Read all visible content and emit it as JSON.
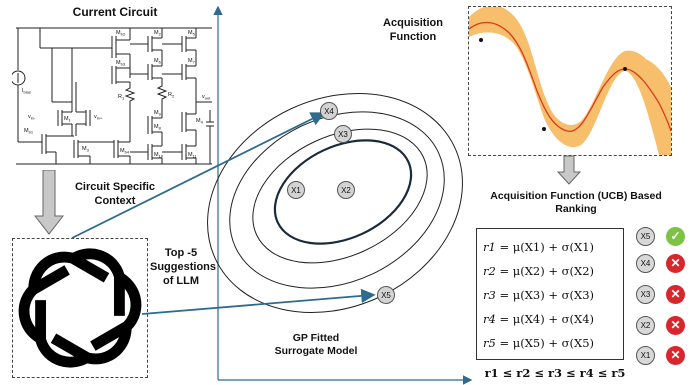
{
  "circuit": {
    "title": "Current Circuit",
    "labels": {
      "ibias": "I",
      "ibias_sub": "bias",
      "vin_minus": "v",
      "vin_minus_sub": "in-",
      "vin_plus": "v",
      "vin_plus_sub": "in+",
      "m1": "M",
      "m1_sub": "1",
      "m2": "M",
      "m2_sub": "2",
      "m3": "M",
      "m3_sub": "3",
      "m4": "M",
      "m4_sub": "4",
      "m5": "M",
      "m5_sub": "5",
      "m6": "M",
      "m6_sub": "6",
      "m7": "M",
      "m7_sub": "7",
      "m8": "M",
      "m8_sub": "8",
      "m9": "M",
      "m9_sub": "9",
      "m10": "M",
      "m10_sub": "10",
      "m11": "M",
      "m11_sub": "11",
      "mb1": "M",
      "mb1_sub": "b1",
      "mb2": "M",
      "mb2_sub": "b2",
      "mb3": "M",
      "mb3_sub": "b3",
      "mb4": "M",
      "mb4_sub": "b4",
      "r1": "R",
      "r1_sub": "1",
      "r2": "R",
      "r2_sub": "2",
      "vout": "v",
      "vout_sub": "out"
    }
  },
  "context_label": "Circuit Specific\nContext",
  "llm_label": "Top -5\nSuggestions\nof LLM",
  "gp_label": "GP Fitted\nSurrogate Model",
  "acq_title": "Acquisition\nFunction",
  "ranking_title": "Acquisition Function (UCB)  Based\nRanking",
  "points": [
    "X4",
    "X3",
    "X1",
    "X2",
    "X5"
  ],
  "equations": [
    {
      "lhs": "r1",
      "rhs": "μ(X1) + σ(X1)"
    },
    {
      "lhs": "r2",
      "rhs": "μ(X2) + σ(X2)"
    },
    {
      "lhs": "r3",
      "rhs": "μ(X3) + σ(X3)"
    },
    {
      "lhs": "r4",
      "rhs": "μ(X4) + σ(X4)"
    },
    {
      "lhs": "r5",
      "rhs": "μ(X5) + σ(X5)"
    }
  ],
  "ranking": [
    {
      "label": "X5",
      "status": "✓",
      "selected": true
    },
    {
      "label": "X4",
      "status": "✕",
      "selected": false
    },
    {
      "label": "X3",
      "status": "✕",
      "selected": false
    },
    {
      "label": "X2",
      "status": "✕",
      "selected": false
    },
    {
      "label": "X1",
      "status": "✕",
      "selected": false
    }
  ],
  "inequality": "r1 ≤ r2  ≤ r3 ≤ r4 ≤ r5",
  "colors": {
    "accent_line": "#2e6b8f",
    "band": "#f7be6b",
    "curve": "#d93b1c",
    "ok": "#7cc243",
    "no": "#d9262c"
  }
}
